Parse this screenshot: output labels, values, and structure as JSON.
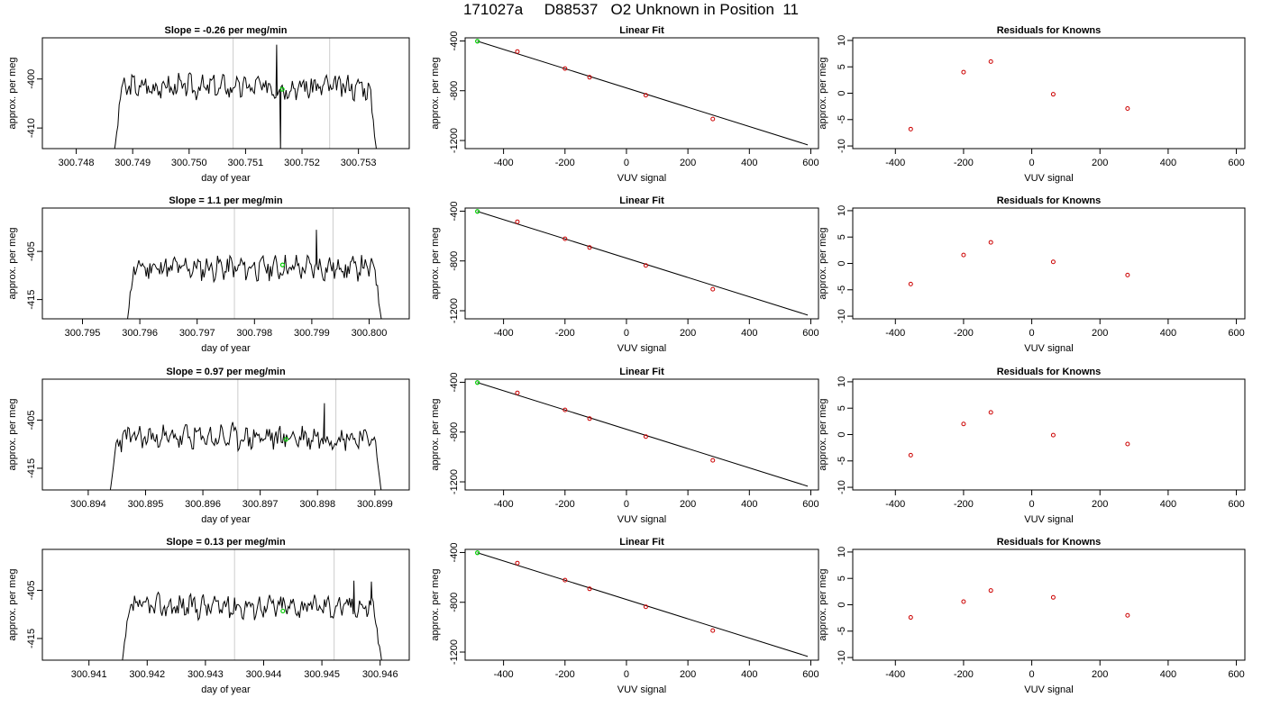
{
  "figure": {
    "title": "171027a     D88537   O2 Unknown in Position  11"
  },
  "chart_data": [
    {
      "type": "line",
      "title": "Slope =  -0.26  per meg/min",
      "xlabel": "day of year",
      "ylabel": "approx. per meg",
      "xlim": [
        300.7474,
        300.7539
      ],
      "ylim": [
        -414.2,
        -391.6
      ],
      "xticks": [
        300.748,
        300.749,
        300.75,
        300.751,
        300.752,
        300.753
      ],
      "xtick_labels": [
        "300.748",
        "300.749",
        "300.750",
        "300.751",
        "300.752",
        "300.753"
      ],
      "yticks": [
        -410,
        -400
      ],
      "ytick_labels": [
        "-410",
        "-400"
      ],
      "x_range": [
        300.7486,
        300.7534
      ],
      "level": -401.6,
      "noise": 1.9,
      "seed": 3,
      "spikes": [
        {
          "x": 300.75155,
          "y": -393.0
        },
        {
          "x": 300.75162,
          "y": -414.5
        }
      ],
      "vlines": [
        300.75078,
        300.75249
      ],
      "vline_color": "#cccccc",
      "marker": {
        "x": 300.75165,
        "y": -402.1,
        "color": "#00cc00"
      },
      "line_color": "#000000"
    },
    {
      "type": "scatter",
      "title": "Linear Fit",
      "xlabel": "VUV signal",
      "ylabel": "approx. per meg",
      "xlim": [
        -525,
        625
      ],
      "ylim": [
        -1265,
        -375
      ],
      "xticks": [
        -400,
        -200,
        0,
        200,
        400,
        600
      ],
      "xtick_labels": [
        "-400",
        "-200",
        "0",
        "200",
        "400",
        "600"
      ],
      "yticks": [
        -1200,
        -800,
        -400
      ],
      "ytick_labels": [
        "-1200",
        "-800",
        "-400"
      ],
      "points": [
        [
          -355,
          -485
        ],
        [
          -200,
          -622
        ],
        [
          -120,
          -692
        ],
        [
          63,
          -836
        ],
        [
          281,
          -1027
        ]
      ],
      "point_color": "#cc0000",
      "unknown": {
        "x": -485,
        "y": -402,
        "color": "#00cc00"
      },
      "fit_line": [
        [
          -485,
          -402
        ],
        [
          590,
          -1235
        ]
      ]
    },
    {
      "type": "scatter",
      "title": "Residuals for Knowns",
      "xlabel": "VUV signal",
      "ylabel": "approx. per meg",
      "xlim": [
        -525,
        625
      ],
      "ylim": [
        -10.5,
        10.5
      ],
      "xticks": [
        -400,
        -200,
        0,
        200,
        400,
        600
      ],
      "xtick_labels": [
        "-400",
        "-200",
        "0",
        "200",
        "400",
        "600"
      ],
      "yticks": [
        -10,
        -5,
        0,
        5,
        10
      ],
      "ytick_labels": [
        "-10",
        "-5",
        "0",
        "5",
        "10"
      ],
      "points": [
        [
          -355,
          -6.8
        ],
        [
          -200,
          4.0
        ],
        [
          -120,
          6.0
        ],
        [
          63,
          -0.2
        ],
        [
          281,
          -2.9
        ]
      ],
      "point_color": "#cc0000"
    },
    {
      "type": "line",
      "title": "Slope =  1.1  per meg/min",
      "xlabel": "day of year",
      "ylabel": "approx. per meg",
      "xlim": [
        300.7943,
        300.8007
      ],
      "ylim": [
        -419.0,
        -396.0
      ],
      "xticks": [
        300.795,
        300.796,
        300.797,
        300.798,
        300.799,
        300.8
      ],
      "xtick_labels": [
        "300.795",
        "300.796",
        "300.797",
        "300.798",
        "300.799",
        "300.800"
      ],
      "yticks": [
        -415,
        -405
      ],
      "ytick_labels": [
        "-415",
        "-405"
      ],
      "x_range": [
        300.7957,
        300.8003
      ],
      "level": -408.4,
      "noise": 1.9,
      "seed": 11,
      "spikes": [
        {
          "x": 300.79908,
          "y": -400.5
        }
      ],
      "vlines": [
        300.79765,
        300.79937
      ],
      "vline_color": "#cccccc",
      "marker": {
        "x": 300.79849,
        "y": -407.8,
        "color": "#00cc00"
      },
      "line_color": "#000000"
    },
    {
      "type": "scatter",
      "title": "Linear Fit",
      "xlabel": "VUV signal",
      "ylabel": "approx. per meg",
      "xlim": [
        -525,
        625
      ],
      "ylim": [
        -1265,
        -375
      ],
      "xticks": [
        -400,
        -200,
        0,
        200,
        400,
        600
      ],
      "xtick_labels": [
        "-400",
        "-200",
        "0",
        "200",
        "400",
        "600"
      ],
      "yticks": [
        -1200,
        -800,
        -400
      ],
      "ytick_labels": [
        "-1200",
        "-800",
        "-400"
      ],
      "points": [
        [
          -355,
          -485
        ],
        [
          -200,
          -622
        ],
        [
          -120,
          -692
        ],
        [
          63,
          -836
        ],
        [
          281,
          -1027
        ]
      ],
      "point_color": "#cc0000",
      "unknown": {
        "x": -485,
        "y": -402,
        "color": "#00cc00"
      },
      "fit_line": [
        [
          -485,
          -402
        ],
        [
          590,
          -1235
        ]
      ]
    },
    {
      "type": "scatter",
      "title": "Residuals for Knowns",
      "xlabel": "VUV signal",
      "ylabel": "approx. per meg",
      "xlim": [
        -525,
        625
      ],
      "ylim": [
        -10.5,
        10.5
      ],
      "xticks": [
        -400,
        -200,
        0,
        200,
        400,
        600
      ],
      "xtick_labels": [
        "-400",
        "-200",
        "0",
        "200",
        "400",
        "600"
      ],
      "yticks": [
        -10,
        -5,
        0,
        5,
        10
      ],
      "ytick_labels": [
        "-10",
        "-5",
        "0",
        "5",
        "10"
      ],
      "points": [
        [
          -355,
          -3.9
        ],
        [
          -200,
          1.6
        ],
        [
          -120,
          4.0
        ],
        [
          63,
          0.3
        ],
        [
          281,
          -2.2
        ]
      ],
      "point_color": "#cc0000"
    },
    {
      "type": "line",
      "title": "Slope =  0.97  per meg/min",
      "xlabel": "day of year",
      "ylabel": "approx. per meg",
      "xlim": [
        300.8932,
        300.8996
      ],
      "ylim": [
        -419.5,
        -396.5
      ],
      "xticks": [
        300.894,
        300.895,
        300.896,
        300.897,
        300.898,
        300.899
      ],
      "xtick_labels": [
        "300.894",
        "300.895",
        "300.896",
        "300.897",
        "300.898",
        "300.899"
      ],
      "yticks": [
        -415,
        -405
      ],
      "ytick_labels": [
        "-415",
        "-405"
      ],
      "x_range": [
        300.8943,
        300.8992
      ],
      "level": -408.6,
      "noise": 2.0,
      "seed": 23,
      "spikes": [
        {
          "x": 300.89812,
          "y": -401.5
        }
      ],
      "vlines": [
        300.89661,
        300.89832
      ],
      "vline_color": "#cccccc",
      "marker": {
        "x": 300.89745,
        "y": -409.0,
        "color": "#00cc00"
      },
      "line_color": "#000000"
    },
    {
      "type": "scatter",
      "title": "Linear Fit",
      "xlabel": "VUV signal",
      "ylabel": "approx. per meg",
      "xlim": [
        -525,
        625
      ],
      "ylim": [
        -1265,
        -375
      ],
      "xticks": [
        -400,
        -200,
        0,
        200,
        400,
        600
      ],
      "xtick_labels": [
        "-400",
        "-200",
        "0",
        "200",
        "400",
        "600"
      ],
      "yticks": [
        -1200,
        -800,
        -400
      ],
      "ytick_labels": [
        "-1200",
        "-800",
        "-400"
      ],
      "points": [
        [
          -355,
          -485
        ],
        [
          -200,
          -622
        ],
        [
          -120,
          -692
        ],
        [
          63,
          -836
        ],
        [
          281,
          -1027
        ]
      ],
      "point_color": "#cc0000",
      "unknown": {
        "x": -485,
        "y": -402,
        "color": "#00cc00"
      },
      "fit_line": [
        [
          -485,
          -402
        ],
        [
          590,
          -1235
        ]
      ]
    },
    {
      "type": "scatter",
      "title": "Residuals for Knowns",
      "xlabel": "VUV signal",
      "ylabel": "approx. per meg",
      "xlim": [
        -525,
        625
      ],
      "ylim": [
        -10.5,
        10.5
      ],
      "xticks": [
        -400,
        -200,
        0,
        200,
        400,
        600
      ],
      "xtick_labels": [
        "-400",
        "-200",
        "0",
        "200",
        "400",
        "600"
      ],
      "yticks": [
        -10,
        -5,
        0,
        5,
        10
      ],
      "ytick_labels": [
        "-10",
        "-5",
        "0",
        "5",
        "10"
      ],
      "points": [
        [
          -355,
          -3.9
        ],
        [
          -200,
          2.0
        ],
        [
          -120,
          4.2
        ],
        [
          63,
          -0.1
        ],
        [
          281,
          -1.8
        ]
      ],
      "point_color": "#cc0000"
    },
    {
      "type": "line",
      "title": "Slope =  0.13  per meg/min",
      "xlabel": "day of year",
      "ylabel": "approx. per meg",
      "xlim": [
        300.9402,
        300.9465
      ],
      "ylim": [
        -419.5,
        -396.5
      ],
      "xticks": [
        300.941,
        300.942,
        300.943,
        300.944,
        300.945,
        300.946
      ],
      "xtick_labels": [
        "300.941",
        "300.942",
        "300.943",
        "300.944",
        "300.945",
        "300.946"
      ],
      "yticks": [
        -415,
        -405
      ],
      "ytick_labels": [
        "-415",
        "-405"
      ],
      "x_range": [
        300.9415,
        300.9461
      ],
      "level": -408.3,
      "noise": 1.9,
      "seed": 37,
      "spikes": [
        {
          "x": 300.94555,
          "y": -403.0
        },
        {
          "x": 300.94585,
          "y": -403.2
        }
      ],
      "vlines": [
        300.9435,
        300.94521
      ],
      "vline_color": "#cccccc",
      "marker": {
        "x": 300.94433,
        "y": -409.3,
        "color": "#00cc00"
      },
      "line_color": "#000000"
    },
    {
      "type": "scatter",
      "title": "Linear Fit",
      "xlabel": "VUV signal",
      "ylabel": "approx. per meg",
      "xlim": [
        -525,
        625
      ],
      "ylim": [
        -1265,
        -375
      ],
      "xticks": [
        -400,
        -200,
        0,
        200,
        400,
        600
      ],
      "xtick_labels": [
        "-400",
        "-200",
        "0",
        "200",
        "400",
        "600"
      ],
      "yticks": [
        -1200,
        -800,
        -400
      ],
      "ytick_labels": [
        "-1200",
        "-800",
        "-400"
      ],
      "points": [
        [
          -355,
          -485
        ],
        [
          -200,
          -622
        ],
        [
          -120,
          -692
        ],
        [
          63,
          -836
        ],
        [
          281,
          -1027
        ]
      ],
      "point_color": "#cc0000",
      "unknown": {
        "x": -485,
        "y": -402,
        "color": "#00cc00"
      },
      "fit_line": [
        [
          -485,
          -402
        ],
        [
          590,
          -1235
        ]
      ]
    },
    {
      "type": "scatter",
      "title": "Residuals for Knowns",
      "xlabel": "VUV signal",
      "ylabel": "approx. per meg",
      "xlim": [
        -525,
        625
      ],
      "ylim": [
        -10.5,
        10.5
      ],
      "xticks": [
        -400,
        -200,
        0,
        200,
        400,
        600
      ],
      "xtick_labels": [
        "-400",
        "-200",
        "0",
        "200",
        "400",
        "600"
      ],
      "yticks": [
        -10,
        -5,
        0,
        5,
        10
      ],
      "ytick_labels": [
        "-10",
        "-5",
        "0",
        "5",
        "10"
      ],
      "points": [
        [
          -355,
          -2.4
        ],
        [
          -200,
          0.6
        ],
        [
          -120,
          2.7
        ],
        [
          63,
          1.4
        ],
        [
          281,
          -2.0
        ]
      ],
      "point_color": "#cc0000"
    }
  ]
}
